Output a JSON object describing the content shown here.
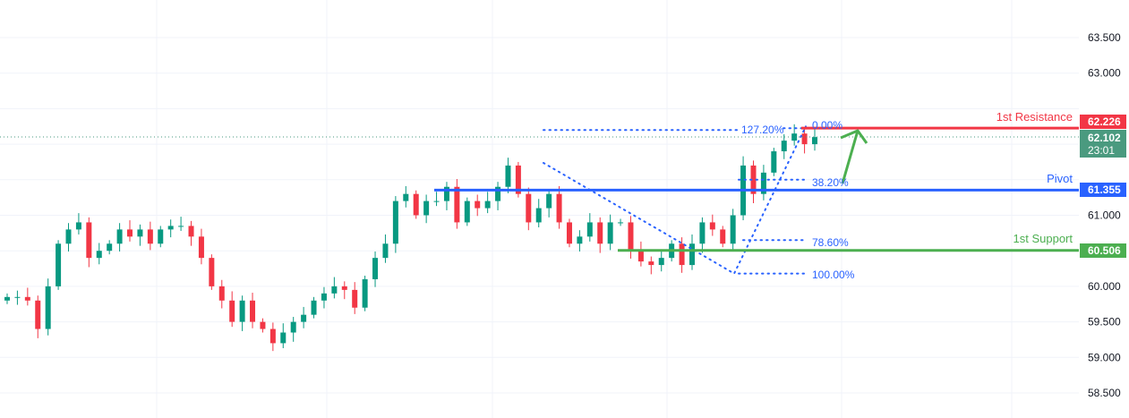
{
  "chart_data": {
    "type": "candlestick",
    "ylim": [
      58.3,
      63.8
    ],
    "y_ticks": [
      "63.500",
      "63.000",
      "62.500",
      "62.000",
      "61.500",
      "61.000",
      "60.500",
      "60.000",
      "59.500",
      "59.000",
      "58.500"
    ],
    "grid": true,
    "closes": [
      59.85,
      59.85,
      59.8,
      59.4,
      60.0,
      60.6,
      60.8,
      60.9,
      60.4,
      60.5,
      60.6,
      60.8,
      60.7,
      60.8,
      60.6,
      60.8,
      60.85,
      60.85,
      60.7,
      60.4,
      60.0,
      59.8,
      59.5,
      59.8,
      59.5,
      59.4,
      59.2,
      59.35,
      59.5,
      59.6,
      59.8,
      59.9,
      60.0,
      59.95,
      59.7,
      60.1,
      60.4,
      60.6,
      61.2,
      61.3,
      61.0,
      61.2,
      61.2,
      61.4,
      60.9,
      61.2,
      61.1,
      61.2,
      61.4,
      61.7,
      61.3,
      60.9,
      61.1,
      61.3,
      60.9,
      60.6,
      60.7,
      60.9,
      60.6,
      60.9,
      60.9,
      60.5,
      60.35,
      60.3,
      60.4,
      60.6,
      60.3,
      60.6,
      60.9,
      60.8,
      60.6,
      61.0,
      61.7,
      61.3,
      61.6,
      61.9,
      62.05,
      62.15,
      62.0,
      62.1
    ],
    "colors": {
      "up": "#089981",
      "down": "#f23645",
      "resistance": "#f23645",
      "pivot": "#2962ff",
      "support": "#4caf50",
      "fib": "#2962ff",
      "arrow": "#4caf50",
      "last_price": "#4a9a7f"
    },
    "levels": [
      {
        "name": "1st Resistance",
        "value": "62.226",
        "price": 62.226,
        "color": "#f23645"
      },
      {
        "name": "Pivot",
        "value": "61.355",
        "price": 61.355,
        "color": "#2962ff"
      },
      {
        "name": "1st Support",
        "value": "60.506",
        "price": 60.506,
        "color": "#4caf50"
      }
    ],
    "fib_levels": [
      {
        "label": "127.20%",
        "price": 62.2
      },
      {
        "label": "0.00%",
        "price": 62.25
      },
      {
        "label": "38.20%",
        "price": 61.5
      },
      {
        "label": "78.60%",
        "price": 60.65
      },
      {
        "label": "100.00%",
        "price": 60.18
      }
    ],
    "last_price": {
      "value": "62.102",
      "price": 62.102,
      "countdown": "23:01"
    }
  }
}
